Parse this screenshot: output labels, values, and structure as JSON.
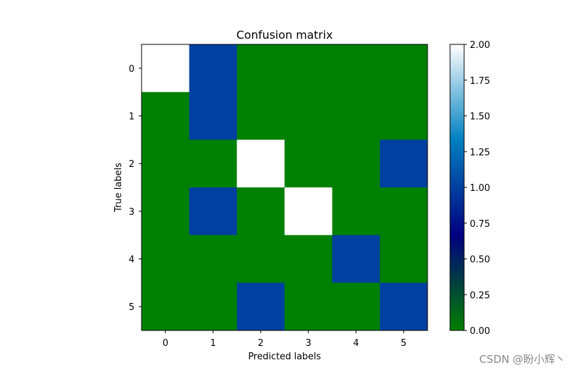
{
  "chart_data": {
    "type": "heatmap",
    "title": "Confusion matrix",
    "xlabel": "Predicted labels",
    "ylabel": "True labels",
    "x_categories": [
      "0",
      "1",
      "2",
      "3",
      "4",
      "5"
    ],
    "y_categories": [
      "0",
      "1",
      "2",
      "3",
      "4",
      "5"
    ],
    "values": [
      [
        2,
        1,
        0,
        0,
        0,
        0
      ],
      [
        0,
        1,
        0,
        0,
        0,
        0
      ],
      [
        0,
        0,
        2,
        0,
        0,
        1
      ],
      [
        0,
        1,
        0,
        2,
        0,
        0
      ],
      [
        0,
        0,
        0,
        0,
        1,
        0
      ],
      [
        0,
        0,
        1,
        0,
        0,
        1
      ]
    ],
    "colorbar": {
      "range": [
        0,
        2
      ],
      "ticks": [
        "0.00",
        "0.25",
        "0.50",
        "0.75",
        "1.00",
        "1.25",
        "1.50",
        "1.75",
        "2.00"
      ],
      "colormap": "ocean",
      "stops": [
        "#008000",
        "#000080",
        "#0080c0",
        "#ffffff"
      ]
    }
  },
  "watermark": "CSDN @盼小辉丶"
}
